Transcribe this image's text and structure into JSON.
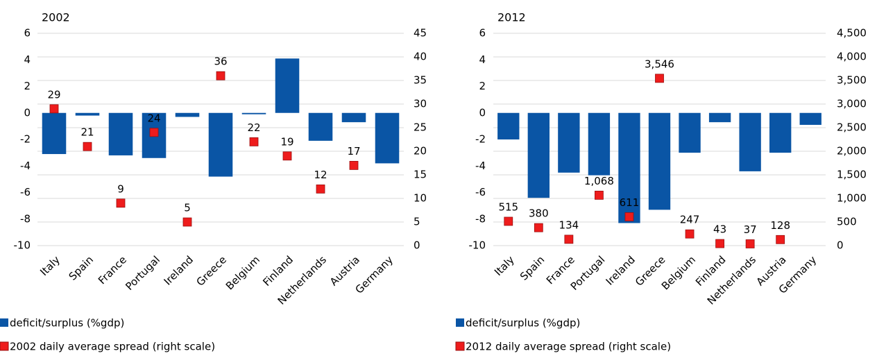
{
  "chart_data": [
    {
      "type": "combo",
      "title": "2002",
      "categories": [
        "Italy",
        "Spain",
        "France",
        "Portugal",
        "Ireland",
        "Greece",
        "Belgium",
        "Finland",
        "Netherlands",
        "Austria",
        "Germany"
      ],
      "series": [
        {
          "name": "deficit/surplus (%gdp)",
          "type": "bar",
          "color": "#0a55a5",
          "values": [
            -3.1,
            -0.2,
            -3.2,
            -3.4,
            -0.3,
            -4.8,
            -0.1,
            4.1,
            -2.1,
            -0.7,
            -3.8
          ]
        },
        {
          "name": "2002 daily average spread (right scale)",
          "type": "scatter",
          "axis": "y2",
          "color": "#ee1c1c",
          "values": [
            29,
            21,
            9,
            24,
            5,
            36,
            22,
            19,
            12,
            17,
            null
          ]
        }
      ],
      "ylim": [
        -10,
        6
      ],
      "yticks": [
        -10,
        -8,
        -6,
        -4,
        -2,
        0,
        2,
        4,
        6
      ],
      "y2lim": [
        0,
        45
      ],
      "y2ticks": [
        0,
        5,
        10,
        15,
        20,
        25,
        30,
        35,
        40,
        45
      ],
      "grid": true
    },
    {
      "type": "combo",
      "title": "2012",
      "categories": [
        "Italy",
        "Spain",
        "France",
        "Portugal",
        "Ireland",
        "Greece",
        "Belgium",
        "Finland",
        "Netherlands",
        "Austria",
        "Germany"
      ],
      "series": [
        {
          "name": "deficit/surplus (%gdp)",
          "type": "bar",
          "color": "#0a55a5",
          "values": [
            -2.0,
            -6.4,
            -4.5,
            -4.7,
            -8.3,
            -7.3,
            -3.0,
            -0.7,
            -4.4,
            -3.0,
            -0.9
          ]
        },
        {
          "name": "2012 daily average spread (right scale)",
          "type": "scatter",
          "axis": "y2",
          "color": "#ee1c1c",
          "values": [
            515,
            380,
            134,
            1068,
            611,
            3546,
            247,
            43,
            37,
            128,
            null
          ],
          "value_labels": [
            "515",
            "380",
            "134",
            "1,068",
            "611",
            "3,546",
            "247",
            "43",
            "37",
            "128",
            null
          ]
        }
      ],
      "ylim": [
        -10,
        6
      ],
      "yticks": [
        -10,
        -8,
        -6,
        -4,
        -2,
        0,
        2,
        4,
        6
      ],
      "y2lim": [
        0,
        4500
      ],
      "y2ticks": [
        0,
        500,
        {
          "value": 1000,
          "label": "1,000"
        },
        {
          "value": 1500,
          "label": "1,500"
        },
        {
          "value": 2000,
          "label": "2,000"
        },
        {
          "value": 2500,
          "label": "2,500"
        },
        {
          "value": 3000,
          "label": "3,000"
        },
        {
          "value": 3500,
          "label": "3,500"
        },
        {
          "value": 4000,
          "label": "4,000"
        },
        {
          "value": 4500,
          "label": "4,500"
        }
      ],
      "grid": true
    }
  ]
}
